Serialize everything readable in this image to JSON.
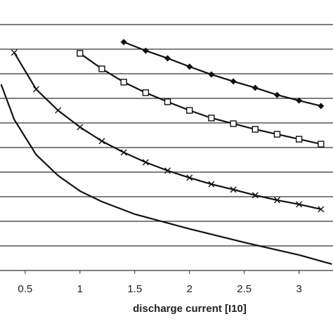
{
  "chart_data": {
    "type": "line",
    "x_label": "discharge current [I10]",
    "xlim": [
      0.27,
      3.31
    ],
    "xticks": [
      0.5,
      1,
      1.5,
      2,
      2.5,
      3
    ],
    "ylim": [
      0,
      11
    ],
    "yticks": [
      0,
      1,
      2,
      3,
      4,
      5,
      6,
      7,
      8,
      9,
      10
    ],
    "grid": true,
    "series": [
      {
        "marker": "diamond",
        "color": "#111",
        "x": [
          1.4,
          1.6,
          1.8,
          2.0,
          2.2,
          2.4,
          2.6,
          2.8,
          3.0,
          3.2
        ],
        "values": [
          9.29,
          8.94,
          8.63,
          8.29,
          7.97,
          7.69,
          7.43,
          7.14,
          6.91,
          6.69
        ]
      },
      {
        "marker": "square",
        "color": "#111",
        "x": [
          1.0,
          1.2,
          1.4,
          1.6,
          1.8,
          2.0,
          2.2,
          2.4,
          2.6,
          2.8,
          3.0,
          3.2
        ],
        "values": [
          8.83,
          8.2,
          7.66,
          7.23,
          6.86,
          6.51,
          6.2,
          5.97,
          5.74,
          5.54,
          5.34,
          5.14
        ]
      },
      {
        "marker": "x",
        "color": "#111",
        "x": [
          0.4,
          0.6,
          0.8,
          1.0,
          1.2,
          1.4,
          1.6,
          1.8,
          2.0,
          2.2,
          2.4,
          2.6,
          2.8,
          3.0,
          3.2
        ],
        "values": [
          8.86,
          7.37,
          6.51,
          5.83,
          5.26,
          4.8,
          4.4,
          4.06,
          3.77,
          3.51,
          3.29,
          3.06,
          2.86,
          2.69,
          2.49
        ]
      },
      {
        "marker": "none",
        "color": "#111",
        "x": [
          0.28,
          0.4,
          0.6,
          0.8,
          1.0,
          1.2,
          1.5,
          2.0,
          2.5,
          3.0,
          3.3
        ],
        "values": [
          7.57,
          6.14,
          4.71,
          3.86,
          3.23,
          2.8,
          2.29,
          1.69,
          1.14,
          0.63,
          0.26
        ]
      }
    ]
  }
}
